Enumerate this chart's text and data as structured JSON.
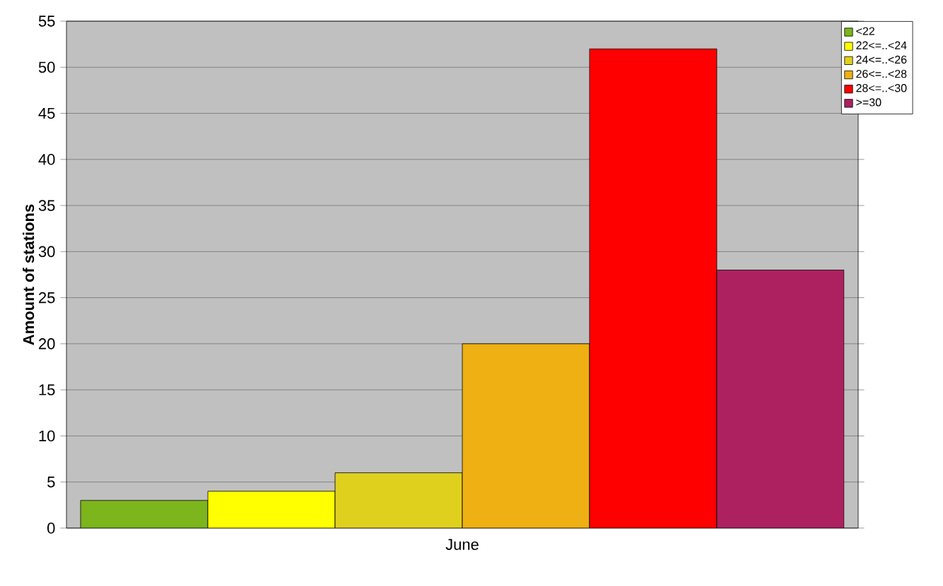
{
  "chart_data": {
    "type": "bar",
    "ylabel": "Amount of stations",
    "categories": [
      "June"
    ],
    "series": [
      {
        "name": "<22",
        "color": "#7cb51c",
        "values": [
          3
        ]
      },
      {
        "name": "22<=..<24",
        "color": "#ffff00",
        "values": [
          4
        ]
      },
      {
        "name": "24<=..<26",
        "color": "#e0d01e",
        "values": [
          6
        ]
      },
      {
        "name": "26<=..<28",
        "color": "#eeb012",
        "values": [
          20
        ]
      },
      {
        "name": "28<=..<30",
        "color": "#ff0000",
        "values": [
          52
        ]
      },
      {
        "name": ">=30",
        "color": "#ad2160",
        "values": [
          28
        ]
      }
    ],
    "ylim": [
      0,
      55
    ],
    "yticks": [
      0,
      5,
      10,
      15,
      20,
      25,
      30,
      35,
      40,
      45,
      50,
      55
    ],
    "grid": "y",
    "legend": "top right"
  }
}
